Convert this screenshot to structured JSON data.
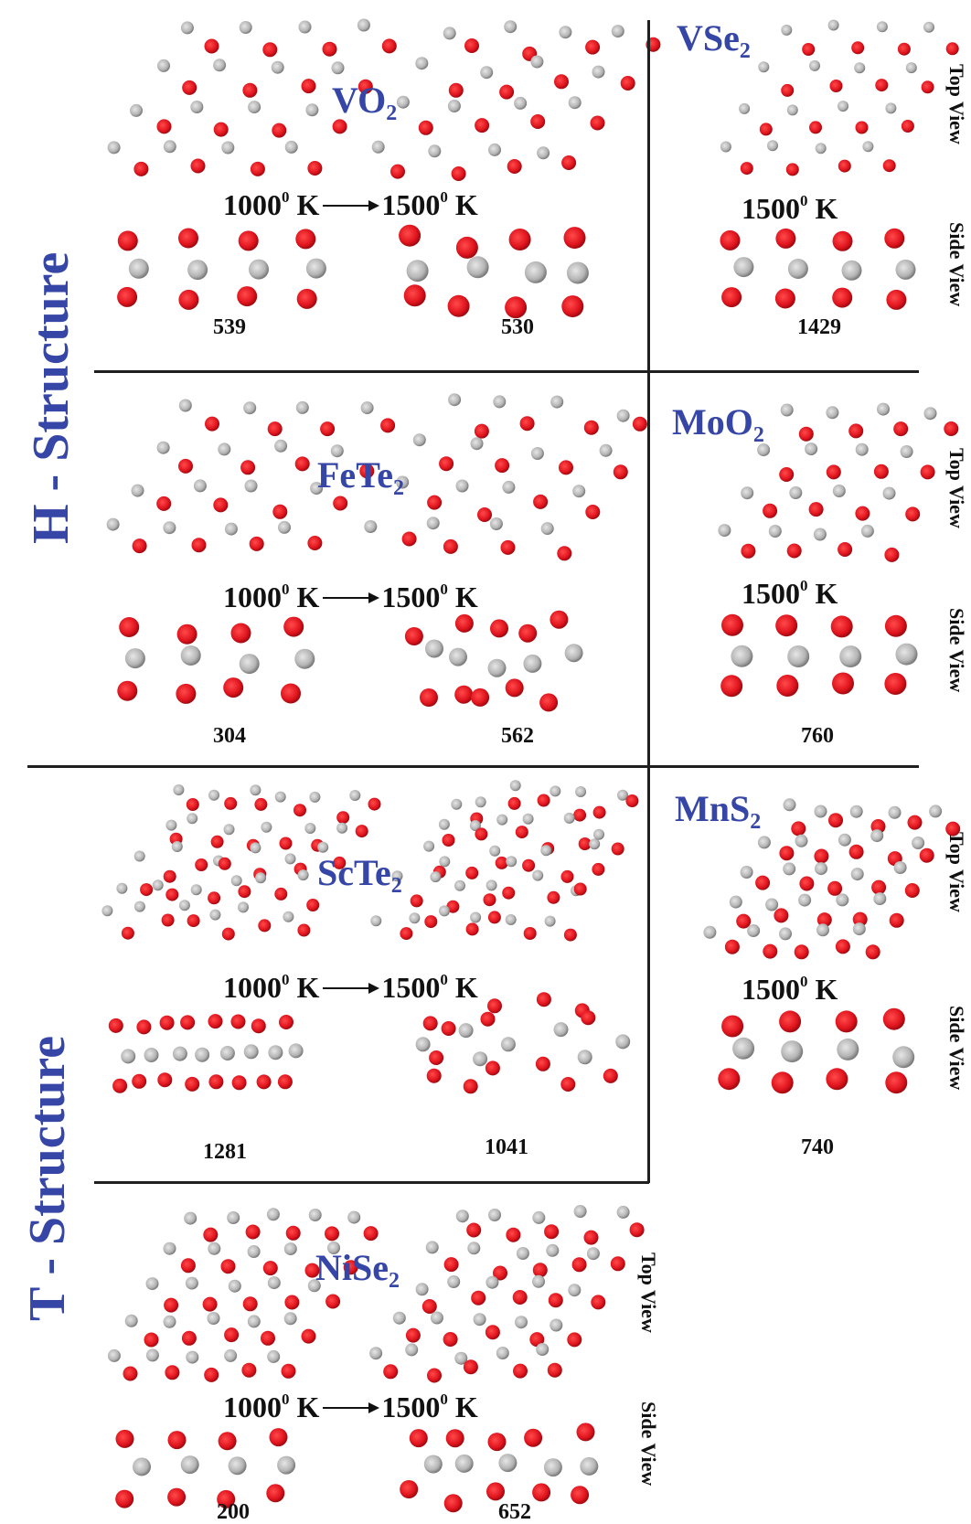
{
  "figure": {
    "structure_titles": {
      "h": "H - Structure",
      "t": "T - Structure"
    },
    "view_labels": {
      "top": "Top View",
      "side": "Side View"
    },
    "colors": {
      "title_blue": "#3546a6",
      "metal_atom_red": "#e0141e",
      "chalcogen_atom_gray": "#b4b4b4",
      "line": "#1f1f1f",
      "text": "#111111"
    },
    "temp_degree": "0",
    "temp_unit": " K",
    "panels": [
      {
        "id": "vo2",
        "group": "H",
        "compound": "VO",
        "sub": "2",
        "transition": true,
        "temp_from": "1000",
        "temp_to": "1500",
        "counts": [
          "539",
          "530"
        ]
      },
      {
        "id": "vse2",
        "group": "H",
        "compound": "VSe",
        "sub": "2",
        "transition": false,
        "temp_to": "1500",
        "counts": [
          "1429"
        ]
      },
      {
        "id": "fete2",
        "group": "H",
        "compound": "FeTe",
        "sub": "2",
        "transition": true,
        "temp_from": "1000",
        "temp_to": "1500",
        "counts": [
          "304",
          "562"
        ]
      },
      {
        "id": "moo2",
        "group": "H",
        "compound": "MoO",
        "sub": "2",
        "transition": false,
        "temp_to": "1500",
        "counts": [
          "760"
        ]
      },
      {
        "id": "scte2",
        "group": "T",
        "compound": "ScTe",
        "sub": "2",
        "transition": true,
        "temp_from": "1000",
        "temp_to": "1500",
        "counts": [
          "1281",
          "1041"
        ]
      },
      {
        "id": "mns2",
        "group": "T",
        "compound": "MnS",
        "sub": "2",
        "transition": false,
        "temp_to": "1500",
        "counts": [
          "740"
        ]
      },
      {
        "id": "nise2",
        "group": "T",
        "compound": "NiSe",
        "sub": "2",
        "transition": true,
        "temp_from": "1000",
        "temp_to": "1500",
        "counts": [
          "200",
          "652"
        ]
      }
    ]
  }
}
